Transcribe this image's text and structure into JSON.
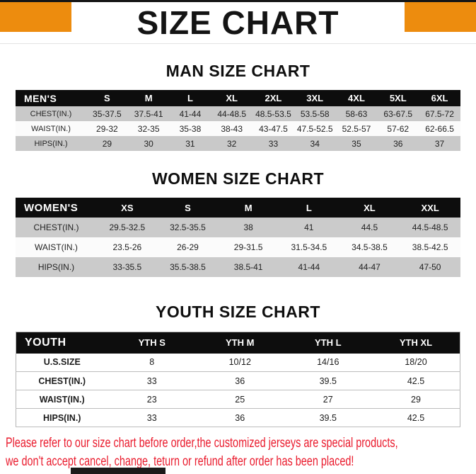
{
  "banner": {
    "title": "SIZE CHART",
    "accent_color": "#ED8C0E",
    "title_color": "#141414"
  },
  "sections": [
    {
      "title": "MAN SIZE CHART"
    },
    {
      "title": "WOMEN SIZE CHART"
    },
    {
      "title": "YOUTH SIZE CHART"
    }
  ],
  "tables": {
    "men": {
      "header": [
        "MEN'S",
        "S",
        "M",
        "L",
        "XL",
        "2XL",
        "3XL",
        "4XL",
        "5XL",
        "6XL"
      ],
      "rows": [
        [
          "CHEST(IN.)",
          "35-37.5",
          "37.5-41",
          "41-44",
          "44-48.5",
          "48.5-53.5",
          "53.5-58",
          "58-63",
          "63-67.5",
          "67.5-72"
        ],
        [
          "WAIST(IN.)",
          "29-32",
          "32-35",
          "35-38",
          "38-43",
          "43-47.5",
          "47.5-52.5",
          "52.5-57",
          "57-62",
          "62-66.5"
        ],
        [
          "HIPS(IN.)",
          "29",
          "30",
          "31",
          "32",
          "33",
          "34",
          "35",
          "36",
          "37"
        ]
      ]
    },
    "women": {
      "header": [
        "WOMEN'S",
        "XS",
        "S",
        "M",
        "L",
        "XL",
        "XXL"
      ],
      "rows": [
        [
          "CHEST(IN.)",
          "29.5-32.5",
          "32.5-35.5",
          "38",
          "41",
          "44.5",
          "44.5-48.5"
        ],
        [
          "WAIST(IN.)",
          "23.5-26",
          "26-29",
          "29-31.5",
          "31.5-34.5",
          "34.5-38.5",
          "38.5-42.5"
        ],
        [
          "HIPS(IN.)",
          "33-35.5",
          "35.5-38.5",
          "38.5-41",
          "41-44",
          "44-47",
          "47-50"
        ]
      ]
    },
    "youth": {
      "header": [
        "YOUTH",
        "YTH S",
        "YTH M",
        "YTH L",
        "YTH XL"
      ],
      "rows": [
        [
          "U.S.SIZE",
          "8",
          "10/12",
          "14/16",
          "18/20"
        ],
        [
          "CHEST(IN.)",
          "33",
          "36",
          "39.5",
          "42.5"
        ],
        [
          "WAIST(IN.)",
          "23",
          "25",
          "27",
          "29"
        ],
        [
          "HIPS(IN.)",
          "33",
          "36",
          "39.5",
          "42.5"
        ]
      ]
    }
  },
  "footer": {
    "text_color": "#EA1B2D",
    "lines": [
      "Please refer to our size chart before order,the customized jerseys are special products,",
      "we don't accept cancel, change, teturn or refund after order has been placed!"
    ]
  }
}
